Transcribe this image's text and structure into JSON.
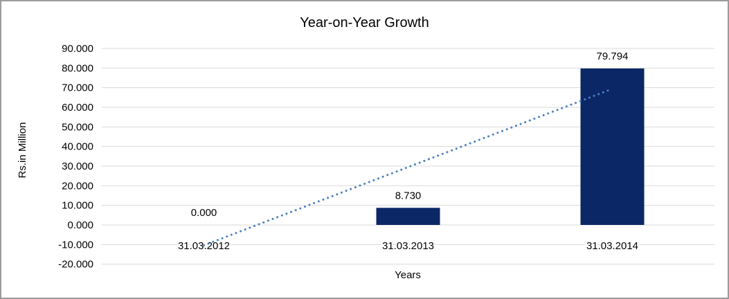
{
  "window": {
    "background": "#ffffff",
    "border_color": "#9b9b9b"
  },
  "chart_data": {
    "type": "bar",
    "title": "Year-on-Year Growth",
    "xlabel": "Years",
    "ylabel": "Rs.in Million",
    "categories": [
      "31.03.2012",
      "31.03.2013",
      "31.03.2014"
    ],
    "values": [
      0,
      8.73,
      79.794
    ],
    "data_labels": [
      "0.000",
      "8.730",
      "79.794"
    ],
    "y_ticks": [
      "90.000",
      "80.000",
      "70.000",
      "60.000",
      "50.000",
      "40.000",
      "30.000",
      "20.000",
      "10.000",
      "0.000",
      "-10.000",
      "-20.000"
    ],
    "ylim": [
      -20,
      90
    ],
    "grid": true,
    "legend": false,
    "bar_color": "#0b2766",
    "gridline_color": "#d9d9d9",
    "trendline": {
      "type": "linear",
      "style": "dotted",
      "color": "#4e80be",
      "start_value": -10.39,
      "end_value": 69.4
    }
  }
}
